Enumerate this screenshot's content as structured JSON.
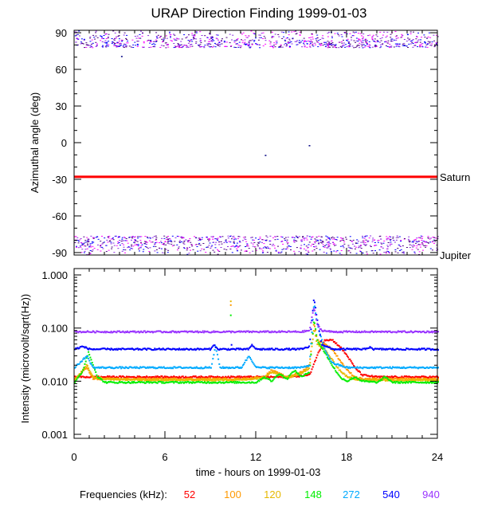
{
  "title": "URAP Direction Finding  1999-01-03",
  "chart_data": [
    {
      "type": "scatter",
      "name": "azimuth",
      "ylabel": "Azimuthal angle (deg)",
      "xlim": [
        0,
        24
      ],
      "ylim": [
        -92,
        92
      ],
      "yticks": [
        90,
        60,
        30,
        0,
        -30,
        -60,
        -90
      ],
      "ref_lines": [
        {
          "label": "Saturn",
          "y": -28,
          "color": "#ff0000"
        },
        {
          "label": "Jupiter",
          "y": -92,
          "color": "#000000"
        }
      ],
      "scatter_bands": [
        {
          "y_range": [
            78,
            92
          ],
          "colors": [
            "#8a2be2",
            "#0000ff",
            "#ff00ff",
            "#4b0082"
          ]
        },
        {
          "y_range": [
            -92,
            -76
          ],
          "colors": [
            "#8a2be2",
            "#0000ff",
            "#ff00ff",
            "#4b0082"
          ]
        }
      ],
      "isolated_points": [
        {
          "x": 12.6,
          "y": -10
        },
        {
          "x": 15.5,
          "y": -2
        },
        {
          "x": 3.1,
          "y": 71
        }
      ]
    },
    {
      "type": "line",
      "name": "intensity",
      "ylabel": "Intensity (microvolt/sqrt(Hz))",
      "xlabel": "time - hours on 1999-01-03",
      "xlim": [
        0,
        24
      ],
      "xticks": [
        "0",
        "6",
        "12",
        "18",
        "24"
      ],
      "yscale": "log",
      "ylim": [
        0.001,
        1.0
      ],
      "yticks": [
        "1.000",
        "0.100",
        "0.010",
        "0.001"
      ],
      "series": [
        {
          "name": "52",
          "color": "#ff0000",
          "x": [
            0,
            2,
            5,
            8,
            10,
            12,
            14,
            15.5,
            16,
            16.5,
            17,
            17.5,
            18,
            18.5,
            19,
            20,
            22,
            24
          ],
          "y": [
            0.012,
            0.012,
            0.012,
            0.012,
            0.012,
            0.012,
            0.012,
            0.013,
            0.03,
            0.06,
            0.06,
            0.045,
            0.03,
            0.018,
            0.013,
            0.012,
            0.012,
            0.012
          ]
        },
        {
          "name": "100",
          "color": "#ff9900",
          "x": [
            0,
            0.8,
            1.2,
            2,
            5,
            8,
            11,
            12.5,
            13,
            14,
            15,
            15.5,
            15.8,
            16,
            16.5,
            17,
            17.5,
            18,
            18.5,
            19,
            20,
            22,
            24
          ],
          "y": [
            0.011,
            0.018,
            0.011,
            0.011,
            0.011,
            0.011,
            0.011,
            0.012,
            0.016,
            0.012,
            0.015,
            0.02,
            0.13,
            0.06,
            0.05,
            0.04,
            0.025,
            0.016,
            0.012,
            0.011,
            0.011,
            0.011,
            0.011
          ]
        },
        {
          "name": "120",
          "color": "#e6b800",
          "x": [
            0,
            0.8,
            1.2,
            2,
            5,
            8,
            11,
            12.5,
            13,
            14,
            15,
            15.5,
            15.8,
            16,
            16.5,
            17,
            17.5,
            18,
            18.5,
            19,
            20,
            22,
            24
          ],
          "y": [
            0.0105,
            0.02,
            0.012,
            0.011,
            0.0105,
            0.0105,
            0.0105,
            0.0115,
            0.015,
            0.0115,
            0.014,
            0.018,
            0.1,
            0.05,
            0.04,
            0.025,
            0.016,
            0.012,
            0.011,
            0.0105,
            0.0105,
            0.0105,
            0.0105
          ]
        },
        {
          "name": "148",
          "color": "#00ee00",
          "x": [
            0,
            0.5,
            0.9,
            1.5,
            2,
            3,
            5,
            8,
            11,
            12,
            12.5,
            13,
            13.5,
            14,
            14.5,
            15,
            15.5,
            15.8,
            16,
            16.5,
            17,
            17.5,
            18,
            18.5,
            19,
            20,
            20.5,
            21,
            22,
            24
          ],
          "y": [
            0.0095,
            0.015,
            0.035,
            0.012,
            0.0095,
            0.0095,
            0.0095,
            0.0095,
            0.0095,
            0.0095,
            0.012,
            0.01,
            0.014,
            0.011,
            0.016,
            0.012,
            0.015,
            0.15,
            0.06,
            0.035,
            0.02,
            0.012,
            0.01,
            0.012,
            0.01,
            0.0095,
            0.012,
            0.0095,
            0.0095,
            0.0095
          ]
        },
        {
          "name": "272",
          "color": "#00aaff",
          "x": [
            0,
            0.8,
            1.2,
            2,
            5,
            9,
            9.3,
            9.6,
            11,
            11.5,
            12,
            13,
            15,
            15.5,
            15.8,
            16,
            16.5,
            17,
            18,
            19,
            20,
            22,
            24
          ],
          "y": [
            0.018,
            0.03,
            0.018,
            0.018,
            0.018,
            0.018,
            0.045,
            0.018,
            0.018,
            0.03,
            0.018,
            0.018,
            0.018,
            0.02,
            0.3,
            0.12,
            0.04,
            0.022,
            0.018,
            0.018,
            0.018,
            0.018,
            0.018
          ]
        },
        {
          "name": "540",
          "color": "#0000ff",
          "x": [
            0,
            0.5,
            1,
            2,
            9,
            9.2,
            9.4,
            11.5,
            11.7,
            12,
            15,
            15.5,
            15.8,
            16,
            16.3,
            17,
            19.3,
            19.5,
            19.7,
            22,
            24
          ],
          "y": [
            0.04,
            0.045,
            0.04,
            0.04,
            0.04,
            0.05,
            0.04,
            0.04,
            0.048,
            0.04,
            0.04,
            0.045,
            0.38,
            0.15,
            0.05,
            0.04,
            0.04,
            0.045,
            0.04,
            0.04,
            0.04
          ]
        },
        {
          "name": "940",
          "color": "#9933ff",
          "x": [
            0,
            3,
            6,
            9,
            12,
            15,
            15.5,
            15.8,
            16,
            16.3,
            17,
            20,
            24
          ],
          "y": [
            0.085,
            0.085,
            0.085,
            0.085,
            0.085,
            0.085,
            0.09,
            0.25,
            0.12,
            0.09,
            0.085,
            0.085,
            0.085
          ]
        }
      ],
      "isolated_points": [
        {
          "x": 10.3,
          "y": 0.33,
          "color": "#e6b800"
        },
        {
          "x": 10.3,
          "y": 0.28,
          "color": "#ff9900"
        },
        {
          "x": 10.3,
          "y": 0.18,
          "color": "#00ee00"
        },
        {
          "x": 10.35,
          "y": 0.05,
          "color": "#0000ff"
        }
      ]
    }
  ],
  "legend": {
    "label": "Frequencies (kHz):",
    "placement": "bottom",
    "items": [
      {
        "name": "52",
        "color": "#ff0000"
      },
      {
        "name": "100",
        "color": "#ff9900"
      },
      {
        "name": "120",
        "color": "#e6b800"
      },
      {
        "name": "148",
        "color": "#00ee00"
      },
      {
        "name": "272",
        "color": "#00aaff"
      },
      {
        "name": "540",
        "color": "#0000ff"
      },
      {
        "name": "940",
        "color": "#9933ff"
      }
    ]
  }
}
